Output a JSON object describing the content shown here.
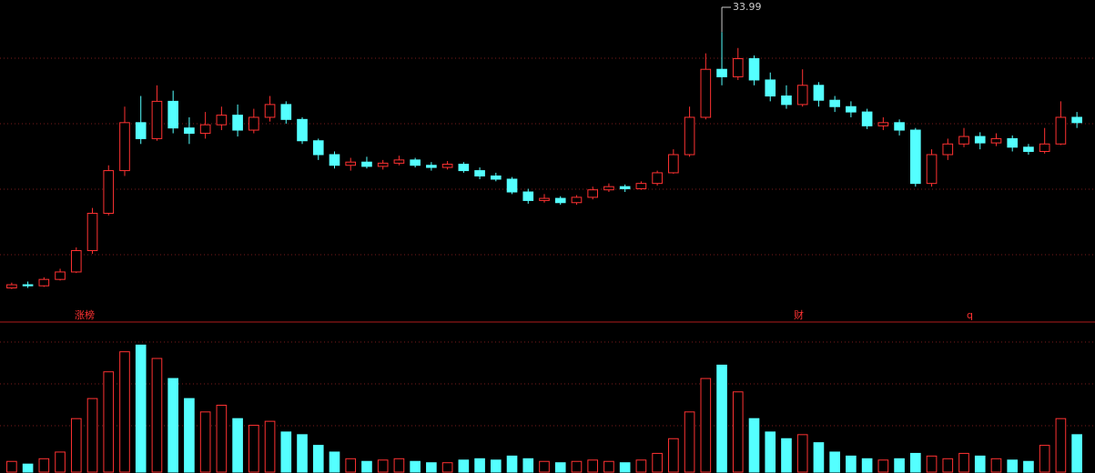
{
  "chart_data": {
    "type": "candlestick",
    "open": [
      10.0,
      10.3,
      10.2,
      10.8,
      11.5,
      13.5,
      17.0,
      21.0,
      25.5,
      24.0,
      27.5,
      25.0,
      24.5,
      25.3,
      26.2,
      24.8,
      26.0,
      27.2,
      25.8,
      23.8,
      22.5,
      21.5,
      21.8,
      21.4,
      21.7,
      22.0,
      21.5,
      21.3,
      21.6,
      21.0,
      20.5,
      20.2,
      19.0,
      18.2,
      18.4,
      18.0,
      18.5,
      19.2,
      19.5,
      19.3,
      19.8,
      20.8,
      22.5,
      26.0,
      30.5,
      29.8,
      31.5,
      29.5,
      28.0,
      27.2,
      29.0,
      27.6,
      27.0,
      26.5,
      25.2,
      25.5,
      24.8,
      19.8,
      22.5,
      23.5,
      24.2,
      23.6,
      24.0,
      23.2,
      22.8,
      23.5,
      26.0
    ],
    "high": [
      10.5,
      10.6,
      11.0,
      11.8,
      13.8,
      17.5,
      21.5,
      27.0,
      28.0,
      29.0,
      28.5,
      26.0,
      26.5,
      27.0,
      27.2,
      26.8,
      28.0,
      27.5,
      26.0,
      24.0,
      22.8,
      22.2,
      22.3,
      22.0,
      22.4,
      22.2,
      21.8,
      21.9,
      21.8,
      21.3,
      20.8,
      20.4,
      19.3,
      18.8,
      18.6,
      18.7,
      19.5,
      19.8,
      19.7,
      20.0,
      21.0,
      23.0,
      27.0,
      32.0,
      33.99,
      32.5,
      31.8,
      30.2,
      29.0,
      30.5,
      29.3,
      28.0,
      27.5,
      26.8,
      26.0,
      25.8,
      25.0,
      23.0,
      24.0,
      25.0,
      24.6,
      24.5,
      24.3,
      23.5,
      25.0,
      27.5,
      26.5
    ],
    "low": [
      9.9,
      10.0,
      10.1,
      10.7,
      11.4,
      13.2,
      16.8,
      20.5,
      23.5,
      23.8,
      24.5,
      23.5,
      24.0,
      24.8,
      24.2,
      24.5,
      25.6,
      25.4,
      23.5,
      22.0,
      21.2,
      21.0,
      21.2,
      21.1,
      21.5,
      21.3,
      21.0,
      21.1,
      20.8,
      20.2,
      20.0,
      18.8,
      17.9,
      18.0,
      17.8,
      17.8,
      18.3,
      19.0,
      19.0,
      19.2,
      19.6,
      20.7,
      22.3,
      25.8,
      29.0,
      29.5,
      29.0,
      27.5,
      26.8,
      27.0,
      27.0,
      26.5,
      26.0,
      24.9,
      24.8,
      24.3,
      19.5,
      19.5,
      22.0,
      23.2,
      23.0,
      23.3,
      22.8,
      22.5,
      22.6,
      23.4,
      25.0
    ],
    "close": [
      10.3,
      10.2,
      10.8,
      11.5,
      13.5,
      17.0,
      21.0,
      25.5,
      24.0,
      27.5,
      25.0,
      24.5,
      25.3,
      26.2,
      24.8,
      26.0,
      27.2,
      25.8,
      23.8,
      22.5,
      21.5,
      21.8,
      21.4,
      21.7,
      22.0,
      21.5,
      21.3,
      21.6,
      21.0,
      20.5,
      20.2,
      19.0,
      18.2,
      18.4,
      18.0,
      18.5,
      19.2,
      19.5,
      19.3,
      19.8,
      20.8,
      22.5,
      26.0,
      30.5,
      29.8,
      31.5,
      29.5,
      28.0,
      27.2,
      29.0,
      27.6,
      27.0,
      26.5,
      25.2,
      25.5,
      24.8,
      19.8,
      22.5,
      23.5,
      24.2,
      23.6,
      24.0,
      23.2,
      22.8,
      23.5,
      26.0,
      25.5
    ],
    "ylim": [
      8,
      37
    ],
    "up_color": "#ff3232",
    "down_color": "#54ffff",
    "max_label": 33.99,
    "markers": [
      "涨榜",
      "财",
      "q"
    ],
    "volume": {
      "values": [
        8,
        6,
        10,
        15,
        40,
        55,
        75,
        90,
        95,
        85,
        70,
        55,
        45,
        50,
        40,
        35,
        38,
        30,
        28,
        20,
        15,
        10,
        8,
        9,
        10,
        8,
        7,
        7,
        9,
        10,
        9,
        12,
        10,
        8,
        7,
        8,
        9,
        8,
        7,
        9,
        14,
        25,
        45,
        70,
        80,
        60,
        40,
        30,
        25,
        28,
        22,
        15,
        12,
        10,
        9,
        10,
        14,
        12,
        10,
        14,
        12,
        10,
        9,
        8,
        20,
        40,
        28
      ],
      "ylim": [
        0,
        100
      ]
    }
  }
}
